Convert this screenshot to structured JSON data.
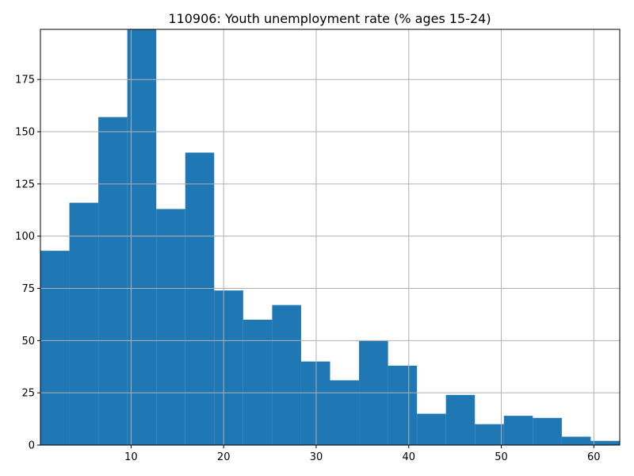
{
  "chart_data": {
    "type": "bar",
    "title": "110906: Youth unemployment rate (% ages 15-24)",
    "xlabel": "",
    "ylabel": "",
    "grid": true,
    "xlim": [
      0.2,
      62.8
    ],
    "ylim": [
      0,
      199
    ],
    "xticks": [
      10,
      20,
      30,
      40,
      50,
      60
    ],
    "yticks": [
      0,
      25,
      50,
      75,
      100,
      125,
      150,
      175
    ],
    "bins": [
      {
        "x0": 0.2,
        "x1": 3.33,
        "count": 93
      },
      {
        "x0": 3.33,
        "x1": 6.46,
        "count": 116
      },
      {
        "x0": 6.46,
        "x1": 9.59,
        "count": 157
      },
      {
        "x0": 9.59,
        "x1": 12.72,
        "count": 199
      },
      {
        "x0": 12.72,
        "x1": 15.85,
        "count": 113
      },
      {
        "x0": 15.85,
        "x1": 18.98,
        "count": 140
      },
      {
        "x0": 18.98,
        "x1": 22.11,
        "count": 74
      },
      {
        "x0": 22.11,
        "x1": 25.24,
        "count": 60
      },
      {
        "x0": 25.24,
        "x1": 28.37,
        "count": 67
      },
      {
        "x0": 28.37,
        "x1": 31.5,
        "count": 40
      },
      {
        "x0": 31.5,
        "x1": 34.63,
        "count": 31
      },
      {
        "x0": 34.63,
        "x1": 37.76,
        "count": 50
      },
      {
        "x0": 37.76,
        "x1": 40.89,
        "count": 38
      },
      {
        "x0": 40.89,
        "x1": 44.02,
        "count": 15
      },
      {
        "x0": 44.02,
        "x1": 47.15,
        "count": 24
      },
      {
        "x0": 47.15,
        "x1": 50.28,
        "count": 10
      },
      {
        "x0": 50.28,
        "x1": 53.41,
        "count": 14
      },
      {
        "x0": 53.41,
        "x1": 56.54,
        "count": 13
      },
      {
        "x0": 56.54,
        "x1": 59.67,
        "count": 4
      },
      {
        "x0": 59.67,
        "x1": 62.8,
        "count": 2
      }
    ],
    "colors": {
      "bar": "#1f77b4",
      "grid": "#b0b0b0"
    }
  }
}
